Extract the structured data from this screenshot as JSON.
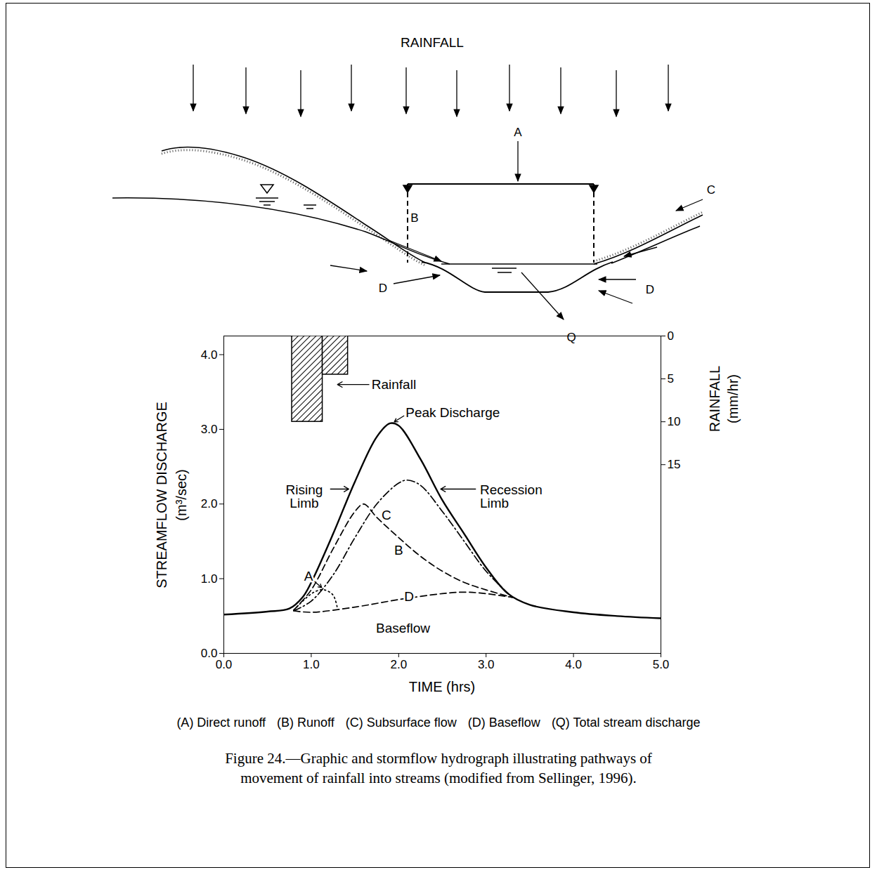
{
  "diagram": {
    "title": "RAINFALL",
    "labels": [
      "A",
      "B",
      "C",
      "D",
      "D",
      "Q"
    ]
  },
  "chart_data": {
    "type": "line",
    "x_label": "TIME (hrs)",
    "y_label": "STREAMFLOW DISCHARGE (m³/sec)",
    "y2_label": "RAINFALL (mm/hr)",
    "color": "#000000",
    "xlim": [
      0,
      5
    ],
    "xticks": [
      0,
      1,
      2,
      3,
      4,
      5
    ],
    "ylim": [
      0,
      4.25
    ],
    "yticks": [
      0,
      1,
      2,
      3,
      4
    ],
    "y2lim": [
      0,
      37
    ],
    "y2ticks": [
      0,
      5,
      10,
      15
    ],
    "annotations": [
      "Peak Discharge",
      "Rising Limb",
      "Recession Limb",
      "Baseflow"
    ],
    "series": [
      {
        "line_style": "solid",
        "x": [
          0,
          0.5,
          0.75,
          0.9,
          1.0,
          1.25,
          1.5,
          1.75,
          1.9,
          2.0,
          2.25,
          2.5,
          2.75,
          3.0,
          3.25,
          3.5,
          4.0,
          4.5,
          5.0
        ],
        "values": [
          0.52,
          0.56,
          0.6,
          0.75,
          0.95,
          1.6,
          2.3,
          2.9,
          3.08,
          3.05,
          2.6,
          2.05,
          1.6,
          1.15,
          0.8,
          0.65,
          0.55,
          0.5,
          0.47
        ]
      },
      {
        "name": "A",
        "line_style": "dotted",
        "x": [
          0.8,
          0.95,
          1.05,
          1.15,
          1.25,
          1.3
        ],
        "values": [
          0.58,
          0.75,
          0.83,
          0.85,
          0.78,
          0.6
        ]
      },
      {
        "name": "B",
        "line_style": "dashed",
        "x": [
          0.8,
          1.0,
          1.25,
          1.5,
          1.6,
          1.75,
          2.0,
          2.25,
          2.5,
          2.75,
          3.0,
          3.3
        ],
        "values": [
          0.58,
          0.85,
          1.4,
          1.9,
          2.0,
          1.82,
          1.55,
          1.3,
          1.1,
          0.95,
          0.85,
          0.75
        ]
      },
      {
        "name": "C",
        "line_style": "dashdot",
        "x": [
          0.8,
          1.0,
          1.25,
          1.5,
          1.75,
          2.0,
          2.1,
          2.25,
          2.5,
          2.75,
          3.0,
          3.3
        ],
        "values": [
          0.57,
          0.7,
          1.05,
          1.55,
          2.0,
          2.28,
          2.32,
          2.25,
          1.9,
          1.5,
          1.1,
          0.75
        ]
      },
      {
        "name": "D",
        "line_style": "dashed",
        "x": [
          0.8,
          1.0,
          1.5,
          2.0,
          2.5,
          2.75,
          3.0,
          3.3
        ],
        "values": [
          0.57,
          0.55,
          0.62,
          0.72,
          0.8,
          0.82,
          0.8,
          0.75
        ]
      },
      {
        "name": "Rainfall",
        "type": "bar",
        "axis": "y2",
        "bins": [
          0.78,
          1.13,
          1.42
        ],
        "values": [
          10,
          4.5
        ]
      }
    ]
  },
  "key": [
    "(A) Direct runoff",
    "(B) Runoff",
    "(C) Subsurface flow",
    "(D) Baseflow",
    "(Q) Total stream discharge"
  ],
  "caption": "Figure 24.—Graphic and stormflow hydrograph illustrating pathways of movement of rainfall into streams (modified from Sellinger, 1996)."
}
